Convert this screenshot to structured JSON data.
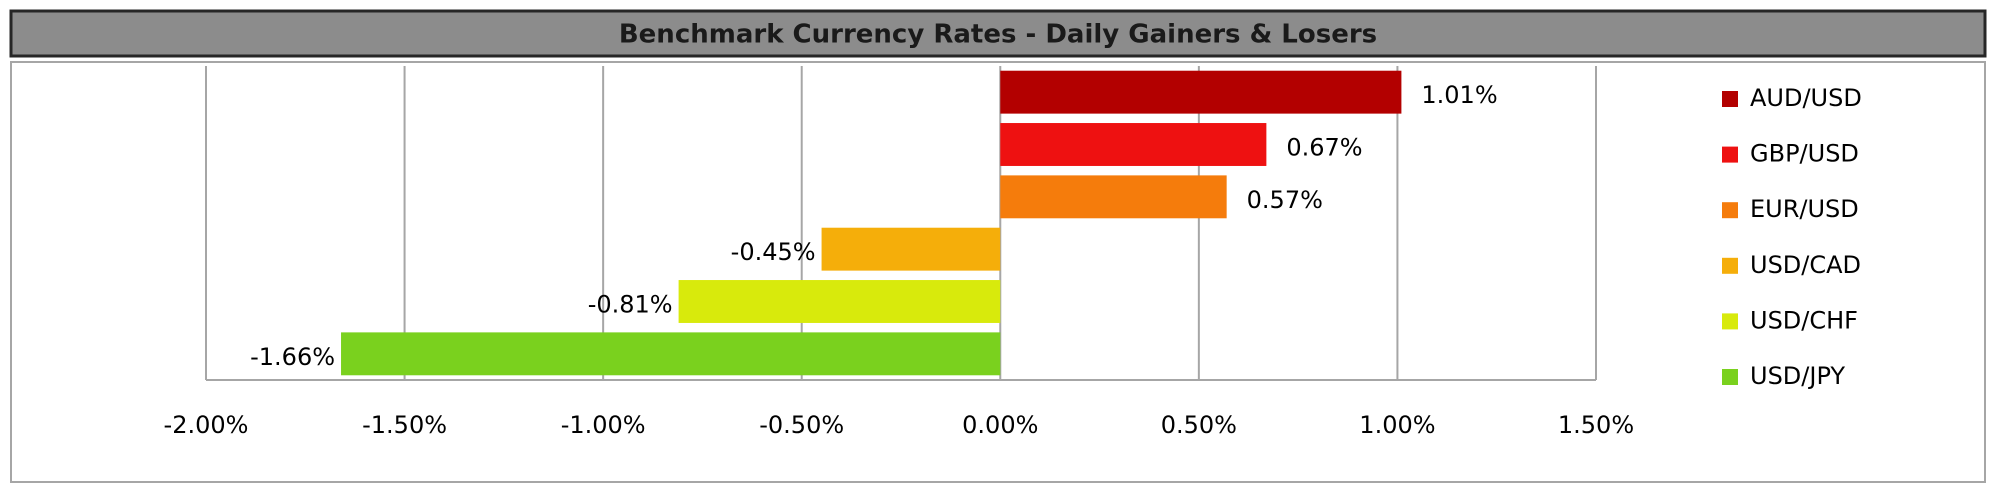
{
  "chart_data": {
    "type": "bar",
    "orientation": "horizontal",
    "title": "Benchmark Currency Rates - Daily Gainers & Losers",
    "series": [
      {
        "name": "AUD/USD",
        "color": "#b30000",
        "values": [
          1.01
        ],
        "value_labels": [
          "1.01%"
        ]
      },
      {
        "name": "GBP/USD",
        "color": "#ee1111",
        "values": [
          0.67
        ],
        "value_labels": [
          "0.67%"
        ]
      },
      {
        "name": "EUR/USD",
        "color": "#f57c0c",
        "values": [
          0.57
        ],
        "value_labels": [
          "0.57%"
        ]
      },
      {
        "name": "USD/CAD",
        "color": "#f5ae0a",
        "values": [
          -0.45
        ],
        "value_labels": [
          "-0.45%"
        ]
      },
      {
        "name": "USD/CHF",
        "color": "#d8ea0c",
        "values": [
          -0.81
        ],
        "value_labels": [
          "-0.81%"
        ]
      },
      {
        "name": "USD/JPY",
        "color": "#7ad11e",
        "values": [
          -1.66
        ],
        "value_labels": [
          "-1.66%"
        ]
      }
    ],
    "xlim": [
      -2,
      1.5
    ],
    "xticks": [
      {
        "value": -2,
        "label": "-2.00%"
      },
      {
        "value": -1.5,
        "label": "-1.50%"
      },
      {
        "value": -1,
        "label": "-1.00%"
      },
      {
        "value": -0.5,
        "label": "-0.50%"
      },
      {
        "value": 0,
        "label": "0.00%"
      },
      {
        "value": 0.5,
        "label": "0.50%"
      },
      {
        "value": 1,
        "label": "1.00%"
      },
      {
        "value": 1.5,
        "label": "1.50%"
      }
    ],
    "grid": true,
    "legend": "right"
  }
}
